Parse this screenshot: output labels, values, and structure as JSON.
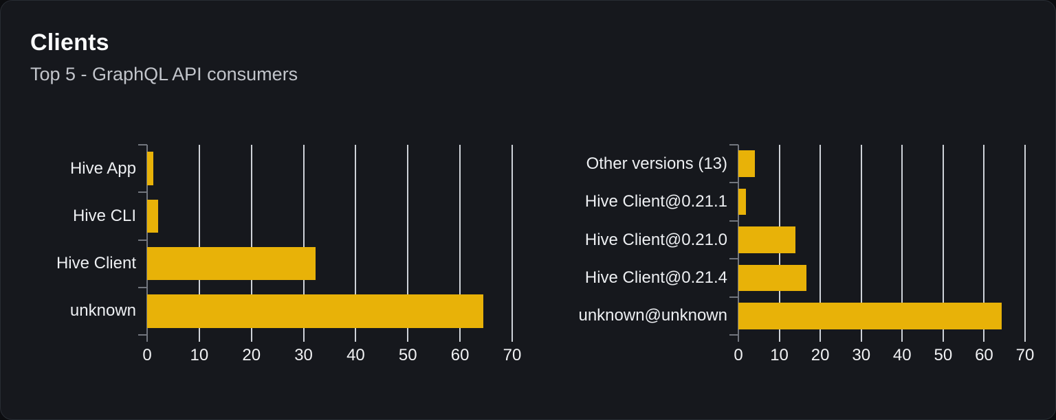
{
  "panel": {
    "title": "Clients",
    "subtitle": "Top 5 - GraphQL API consumers"
  },
  "colors": {
    "card_background": "#16181d",
    "card_border": "#282c33",
    "bar": "#e8b208",
    "gridline": "#cfd3d9",
    "axis": "#72767e",
    "title_text": "#fafbfc",
    "subtitle_text": "#c2c5cb",
    "label_text": "#edeff2"
  },
  "chart_data": [
    {
      "type": "bar",
      "orientation": "horizontal",
      "categories": [
        "Hive App",
        "Hive CLI",
        "Hive Client",
        "unknown"
      ],
      "values": [
        1.2,
        2.1,
        32.3,
        64.5
      ],
      "xlim": [
        0,
        70
      ],
      "x_ticks": [
        0,
        10,
        20,
        30,
        40,
        50,
        60,
        70
      ],
      "grid": true,
      "legend": "none",
      "bar_color": "#e8b208"
    },
    {
      "type": "bar",
      "orientation": "horizontal",
      "categories": [
        "Other versions (13)",
        "Hive Client@0.21.1",
        "Hive Client@0.21.0",
        "Hive Client@0.21.4",
        "unknown@unknown"
      ],
      "values": [
        4.0,
        1.8,
        13.9,
        16.6,
        64.3
      ],
      "xlim": [
        0,
        70
      ],
      "x_ticks": [
        0,
        10,
        20,
        30,
        40,
        50,
        60,
        70
      ],
      "grid": true,
      "legend": "none",
      "bar_color": "#e8b208"
    }
  ]
}
